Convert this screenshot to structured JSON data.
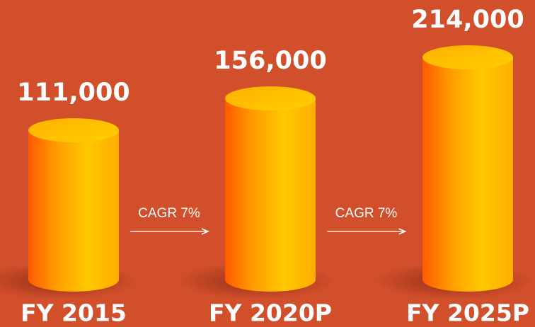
{
  "chart_data": {
    "type": "bar",
    "categories": [
      "FY 2015",
      "FY 2020P",
      "FY 2025P"
    ],
    "values": [
      111000,
      156000,
      214000
    ],
    "value_labels": [
      "111,000",
      "156,000",
      "214,000"
    ],
    "annotations": [
      "CAGR 7%",
      "CAGR 7%"
    ],
    "color": "#ffb300"
  }
}
